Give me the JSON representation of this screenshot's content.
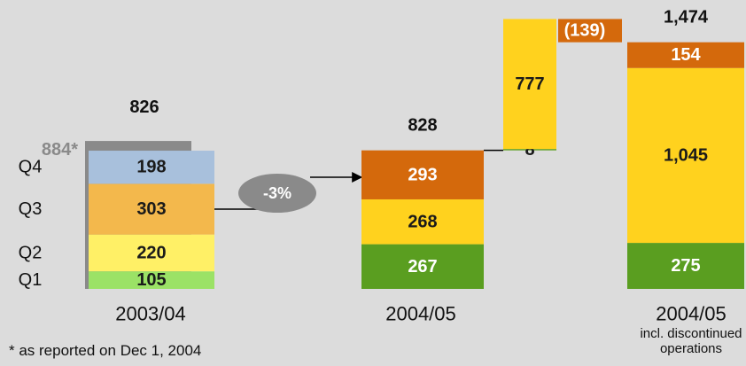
{
  "chart_data": {
    "type": "bridge",
    "ylim": [
      0,
      1700
    ],
    "bars": [
      {
        "category": "2003/04",
        "total": 826,
        "reported": {
          "value": 884,
          "label": "884*",
          "color": "#8a8a8a"
        },
        "segments": [
          {
            "label": "Q1",
            "value": 105,
            "color": "#9be266",
            "text_color": "#1a1a1a"
          },
          {
            "label": "Q2",
            "value": 220,
            "color": "#fff066",
            "text_color": "#1a1a1a"
          },
          {
            "label": "Q3",
            "value": 303,
            "color": "#f3b84c",
            "text_color": "#1a1a1a"
          },
          {
            "label": "Q4",
            "value": 198,
            "color": "#a8c0dc",
            "text_color": "#1a1a1a"
          }
        ]
      },
      {
        "category": "2004/05",
        "total": 828,
        "segments": [
          {
            "value": 267,
            "color": "#5a9e20",
            "text_color": "#ffffff"
          },
          {
            "value": 268,
            "color": "#ffd21e",
            "text_color": "#1a1a1a"
          },
          {
            "value": 293,
            "color": "#d4690c",
            "text_color": "#ffffff"
          }
        ]
      },
      {
        "category": "2004/05",
        "note": "incl. discontinued operations",
        "total": 1474,
        "total_label": "1,474",
        "segments": [
          {
            "value": 275,
            "color": "#5a9e20",
            "text_color": "#ffffff"
          },
          {
            "value": 1045,
            "value_label": "1,045",
            "color": "#ffd21e",
            "text_color": "#1a1a1a"
          },
          {
            "value": 154,
            "color": "#d4690c",
            "text_color": "#ffffff"
          }
        ]
      }
    ],
    "bridge": {
      "segments": [
        {
          "value": 8,
          "color": "#5a9e20",
          "text_color": "#1a1a1a"
        },
        {
          "value": 777,
          "color": "#ffd21e",
          "text_color": "#1a1a1a"
        }
      ],
      "adjustment": {
        "value": -139,
        "label": "(139)",
        "color": "#d4690c",
        "text_color": "#ffffff"
      }
    },
    "annotation": "-3%",
    "footnote": "* as reported on Dec 1, 2004"
  }
}
